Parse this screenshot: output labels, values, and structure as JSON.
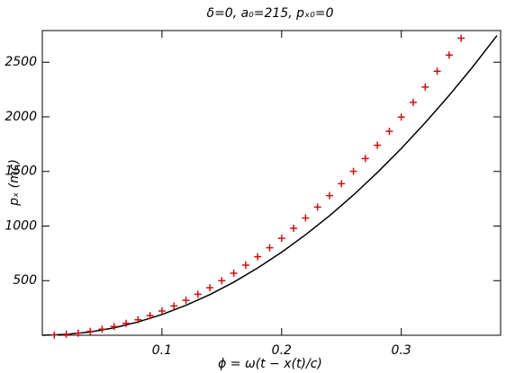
{
  "chart_data": {
    "type": "line",
    "title": "δ=0,  a₀=215,  pₓ₀=0",
    "x_label": "ϕ = ω(t − x(t)/c)",
    "y_label": "pₓ (mc)",
    "xlim": [
      0,
      0.383
    ],
    "ylim": [
      0,
      2790
    ],
    "xticks": [
      0.1,
      0.2,
      0.3
    ],
    "yticks": [
      500,
      1000,
      1500,
      2000,
      2500
    ],
    "series": [
      {
        "color": "#000000",
        "marker": "none",
        "x": [
          0,
          0.02,
          0.04,
          0.06,
          0.08,
          0.1,
          0.12,
          0.14,
          0.16,
          0.18,
          0.2,
          0.22,
          0.24,
          0.26,
          0.28,
          0.3,
          0.32,
          0.34,
          0.36,
          0.38
        ],
        "values": [
          0,
          8,
          30,
          68,
          122,
          190,
          274,
          372,
          486,
          616,
          760,
          920,
          1094,
          1284,
          1490,
          1710,
          1946,
          2196,
          2462,
          2744
        ]
      },
      {
        "color": "#cc1111",
        "marker": "plus",
        "x": [
          0.01,
          0.02,
          0.03,
          0.04,
          0.05,
          0.06,
          0.07,
          0.08,
          0.09,
          0.1,
          0.11,
          0.12,
          0.13,
          0.14,
          0.15,
          0.16,
          0.17,
          0.18,
          0.19,
          0.2,
          0.21,
          0.22,
          0.23,
          0.24,
          0.25,
          0.26,
          0.27,
          0.28,
          0.29,
          0.3,
          0.31,
          0.32,
          0.33,
          0.34,
          0.35
        ],
        "values": [
          2,
          9,
          20,
          36,
          56,
          80,
          109,
          142,
          180,
          222,
          269,
          320,
          375,
          435,
          500,
          568,
          642,
          719,
          801,
          888,
          979,
          1074,
          1174,
          1279,
          1388,
          1501,
          1618,
          1740,
          1867,
          1998,
          2133,
          2273,
          2418,
          2566,
          2720
        ]
      }
    ]
  }
}
